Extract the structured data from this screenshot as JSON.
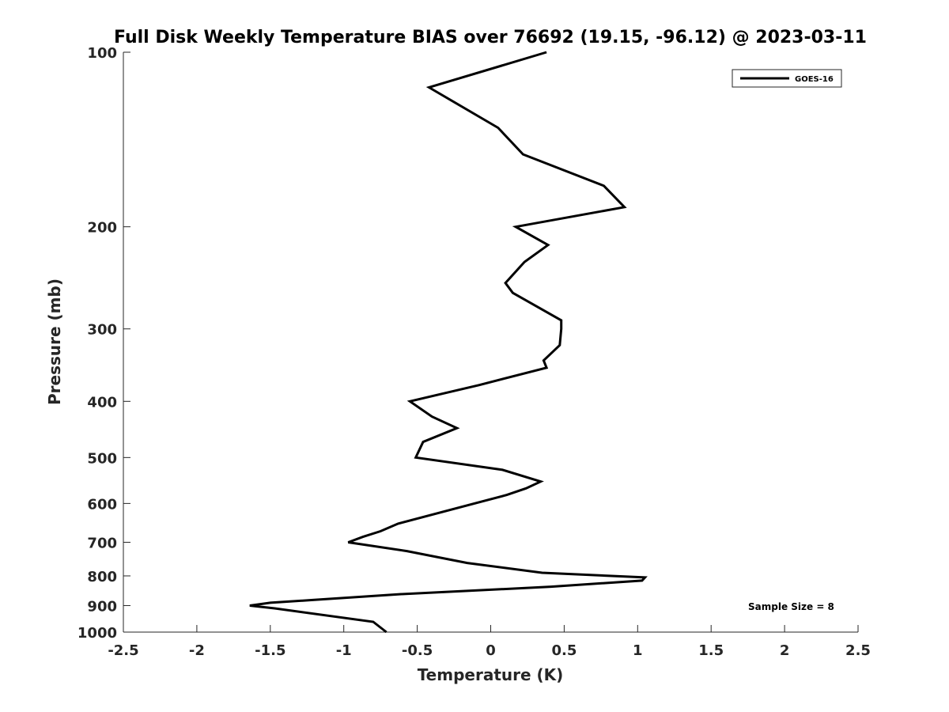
{
  "chart_data": {
    "type": "line",
    "title": "Full Disk Weekly Temperature BIAS over 76692 (19.15, -96.12) @ 2023-03-11",
    "xlabel": "Temperature (K)",
    "ylabel": "Pressure (mb)",
    "xlim": [
      -2.5,
      2.5
    ],
    "ylim": [
      1000,
      100
    ],
    "yscale": "log",
    "y_reversed": true,
    "grid": false,
    "legend_position": "top-right",
    "x_ticks": [
      -2.5,
      -2,
      -1.5,
      -1,
      -0.5,
      0,
      0.5,
      1,
      1.5,
      2,
      2.5
    ],
    "x_tick_labels": [
      "-2.5",
      "-2",
      "-1.5",
      "-1",
      "-0.5",
      "0",
      "0.5",
      "1",
      "1.5",
      "2",
      "2.5"
    ],
    "y_ticks": [
      100,
      200,
      300,
      400,
      500,
      600,
      700,
      800,
      900,
      1000
    ],
    "y_tick_labels": [
      "100",
      "200",
      "300",
      "400",
      "500",
      "600",
      "700",
      "800",
      "900",
      "1000"
    ],
    "series": [
      {
        "name": "GOES-16",
        "color": "#000000",
        "points": [
          [
            0.38,
            100
          ],
          [
            -0.42,
            115
          ],
          [
            0.05,
            135
          ],
          [
            0.22,
            150
          ],
          [
            0.77,
            170
          ],
          [
            0.91,
            185
          ],
          [
            0.17,
            200
          ],
          [
            0.39,
            215
          ],
          [
            0.23,
            230
          ],
          [
            0.1,
            250
          ],
          [
            0.15,
            260
          ],
          [
            0.48,
            290
          ],
          [
            0.48,
            300
          ],
          [
            0.47,
            320
          ],
          [
            0.36,
            340
          ],
          [
            0.38,
            350
          ],
          [
            -0.08,
            375
          ],
          [
            -0.55,
            400
          ],
          [
            -0.4,
            425
          ],
          [
            -0.23,
            445
          ],
          [
            -0.46,
            470
          ],
          [
            -0.51,
            500
          ],
          [
            0.08,
            525
          ],
          [
            0.34,
            550
          ],
          [
            0.24,
            565
          ],
          [
            0.11,
            580
          ],
          [
            -0.63,
            650
          ],
          [
            -0.75,
            670
          ],
          [
            -0.87,
            685
          ],
          [
            -0.97,
            700
          ],
          [
            -0.57,
            725
          ],
          [
            -0.16,
            760
          ],
          [
            0.35,
            790
          ],
          [
            1.05,
            805
          ],
          [
            1.03,
            815
          ],
          [
            0.41,
            835
          ],
          [
            -0.2,
            850
          ],
          [
            -0.61,
            860
          ],
          [
            -1.2,
            880
          ],
          [
            -1.5,
            890
          ],
          [
            -1.64,
            900
          ],
          [
            -1.47,
            910
          ],
          [
            -0.8,
            960
          ],
          [
            -0.71,
            1000
          ]
        ]
      }
    ],
    "annotation": "Sample Size = 8"
  }
}
